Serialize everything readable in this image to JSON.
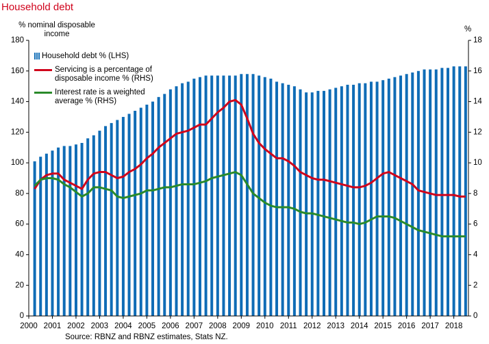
{
  "chart_data": {
    "type": "bar_line",
    "title": "Household debt",
    "ylabel": "% nominal disposable income",
    "y2label": "%",
    "source": "Source: RBNZ and RBNZ estimates, Stats NZ.",
    "x": [
      2000.25,
      2000.5,
      2000.75,
      2001,
      2001.25,
      2001.5,
      2001.75,
      2002,
      2002.25,
      2002.5,
      2002.75,
      2003,
      2003.25,
      2003.5,
      2003.75,
      2004,
      2004.25,
      2004.5,
      2004.75,
      2005,
      2005.25,
      2005.5,
      2005.75,
      2006,
      2006.25,
      2006.5,
      2006.75,
      2007,
      2007.25,
      2007.5,
      2007.75,
      2008,
      2008.25,
      2008.5,
      2008.75,
      2009,
      2009.25,
      2009.5,
      2009.75,
      2010,
      2010.25,
      2010.5,
      2010.75,
      2011,
      2011.25,
      2011.5,
      2011.75,
      2012,
      2012.25,
      2012.5,
      2012.75,
      2013,
      2013.25,
      2013.5,
      2013.75,
      2014,
      2014.25,
      2014.5,
      2014.75,
      2015,
      2015.25,
      2015.5,
      2015.75,
      2016,
      2016.25,
      2016.5,
      2016.75,
      2017,
      2017.25,
      2017.5,
      2017.75,
      2018,
      2018.25,
      2018.5
    ],
    "series": [
      {
        "name": "Household debt % (LHS)",
        "color": "#0f6cb6",
        "kind": "bar",
        "values": [
          101,
          104,
          106,
          108,
          110,
          111,
          111,
          112,
          113,
          116,
          118,
          121,
          124,
          126,
          128,
          130,
          132,
          134,
          136,
          138,
          140,
          143,
          145,
          148,
          150,
          152,
          153,
          155,
          156,
          157,
          157,
          157,
          157,
          157,
          157,
          158,
          158,
          158,
          157,
          156,
          155,
          153,
          152,
          151,
          150,
          148,
          146,
          146,
          147,
          147,
          148,
          149,
          150,
          151,
          151,
          152,
          152,
          153,
          153,
          154,
          155,
          156,
          157,
          158,
          159,
          160,
          161,
          161,
          161,
          162,
          162,
          163,
          163,
          163
        ]
      },
      {
        "name": "Servicing is a percentage of disposable income % (RHS)",
        "color": "#d0021b",
        "kind": "line",
        "axis": "y2",
        "values": [
          8.3,
          8.9,
          9.2,
          9.3,
          9.3,
          8.9,
          8.7,
          8.5,
          8.3,
          8.9,
          9.3,
          9.4,
          9.4,
          9.2,
          9.0,
          9.1,
          9.4,
          9.6,
          9.9,
          10.3,
          10.6,
          11.0,
          11.3,
          11.6,
          11.9,
          12.0,
          12.1,
          12.3,
          12.5,
          12.5,
          12.9,
          13.3,
          13.6,
          14.0,
          14.1,
          13.8,
          12.9,
          11.9,
          11.3,
          10.9,
          10.6,
          10.3,
          10.3,
          10.1,
          9.8,
          9.4,
          9.2,
          9.0,
          8.9,
          8.9,
          8.8,
          8.7,
          8.6,
          8.5,
          8.4,
          8.4,
          8.5,
          8.7,
          9.0,
          9.3,
          9.4,
          9.2,
          9.0,
          8.8,
          8.6,
          8.2,
          8.1,
          8.0,
          7.9,
          7.9,
          7.9,
          7.9,
          7.8,
          7.8
        ]
      },
      {
        "name": "Interest rate is a weighted average % (RHS)",
        "color": "#2a8a2a",
        "kind": "line",
        "axis": "y2",
        "values": [
          8.5,
          8.9,
          9.0,
          9.0,
          8.9,
          8.6,
          8.4,
          8.1,
          7.8,
          8.0,
          8.4,
          8.4,
          8.3,
          8.2,
          7.8,
          7.7,
          7.8,
          7.9,
          8.0,
          8.2,
          8.2,
          8.3,
          8.4,
          8.4,
          8.5,
          8.6,
          8.6,
          8.6,
          8.7,
          8.8,
          9.0,
          9.1,
          9.2,
          9.3,
          9.4,
          9.2,
          8.6,
          8.0,
          7.7,
          7.4,
          7.2,
          7.1,
          7.1,
          7.1,
          7.0,
          6.8,
          6.7,
          6.7,
          6.6,
          6.5,
          6.4,
          6.3,
          6.2,
          6.1,
          6.1,
          6.0,
          6.1,
          6.3,
          6.5,
          6.5,
          6.5,
          6.4,
          6.2,
          6.0,
          5.8,
          5.6,
          5.5,
          5.4,
          5.3,
          5.2,
          5.2,
          5.2,
          5.2,
          5.2
        ]
      }
    ],
    "xlim": [
      2000,
      2018.62
    ],
    "xticks": [
      2000,
      2001,
      2002,
      2003,
      2004,
      2005,
      2006,
      2007,
      2008,
      2009,
      2010,
      2011,
      2012,
      2013,
      2014,
      2015,
      2016,
      2017,
      2018
    ],
    "ylim": [
      0,
      180
    ],
    "yticks": [
      0,
      20,
      40,
      60,
      80,
      100,
      120,
      140,
      160,
      180
    ],
    "y2lim": [
      0,
      18
    ],
    "y2ticks": [
      0,
      2,
      4,
      6,
      8,
      10,
      12,
      14,
      16,
      18
    ],
    "legend": "upper left"
  }
}
